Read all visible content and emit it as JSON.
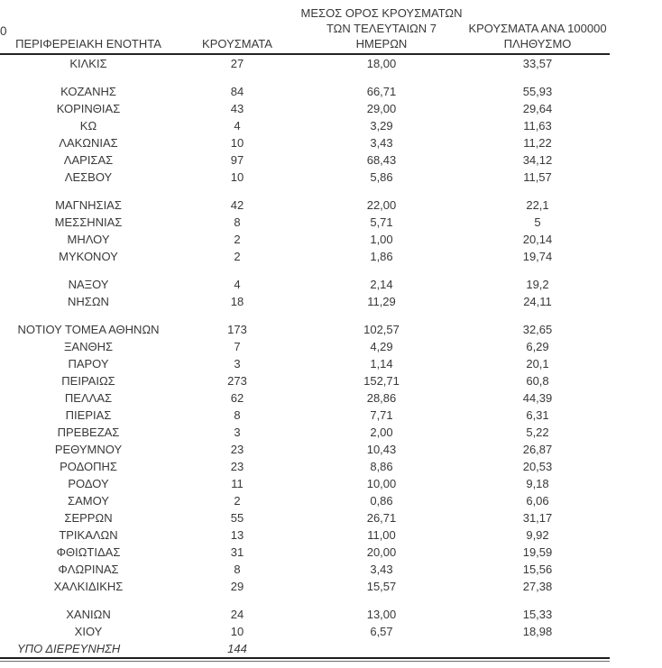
{
  "page": {
    "edge_fragment": "0"
  },
  "table": {
    "columns": [
      {
        "name": "region",
        "lines": [
          "ΠΕΡΙΦΕΡΕΙΑΚΗ ΕΝΟΤΗΤΑ"
        ]
      },
      {
        "name": "cases",
        "lines": [
          "ΚΡΟΥΣΜΑΤΑ"
        ]
      },
      {
        "name": "avg7",
        "lines": [
          "ΜΕΣΟΣ ΟΡΟΣ ΚΡΟΥΣΜΑΤΩΝ",
          "ΤΩΝ ΤΕΛΕΥΤΑΙΩΝ 7",
          "ΗΜΕΡΩΝ"
        ]
      },
      {
        "name": "per100k",
        "lines": [
          "ΚΡΟΥΣΜΑΤΑ ΑΝΑ 100000",
          "ΠΛΗΘΥΣΜΟ"
        ]
      }
    ],
    "rows": [
      {
        "region": "ΚΙΛΚΙΣ",
        "cases": "27",
        "avg7": "18,00",
        "per100k": "33,57"
      },
      {
        "spacer": true
      },
      {
        "region": "ΚΟΖΑΝΗΣ",
        "cases": "84",
        "avg7": "66,71",
        "per100k": "55,93"
      },
      {
        "region": "ΚΟΡΙΝΘΙΑΣ",
        "cases": "43",
        "avg7": "29,00",
        "per100k": "29,64"
      },
      {
        "region": "ΚΩ",
        "cases": "4",
        "avg7": "3,29",
        "per100k": "11,63"
      },
      {
        "region": "ΛΑΚΩΝΙΑΣ",
        "cases": "10",
        "avg7": "3,43",
        "per100k": "11,22"
      },
      {
        "region": "ΛΑΡΙΣΑΣ",
        "cases": "97",
        "avg7": "68,43",
        "per100k": "34,12"
      },
      {
        "region": "ΛΕΣΒΟΥ",
        "cases": "10",
        "avg7": "5,86",
        "per100k": "11,57"
      },
      {
        "spacer": true
      },
      {
        "region": "ΜΑΓΝΗΣΙΑΣ",
        "cases": "42",
        "avg7": "22,00",
        "per100k": "22,1"
      },
      {
        "region": "ΜΕΣΣΗΝΙΑΣ",
        "cases": "8",
        "avg7": "5,71",
        "per100k": "5"
      },
      {
        "region": "ΜΗΛΟΥ",
        "cases": "2",
        "avg7": "1,00",
        "per100k": "20,14"
      },
      {
        "region": "ΜΥΚΟΝΟΥ",
        "cases": "2",
        "avg7": "1,86",
        "per100k": "19,74"
      },
      {
        "spacer": true
      },
      {
        "region": "ΝΑΞΟΥ",
        "cases": "4",
        "avg7": "2,14",
        "per100k": "19,2"
      },
      {
        "region": "ΝΗΣΩΝ",
        "cases": "18",
        "avg7": "11,29",
        "per100k": "24,11"
      },
      {
        "spacer": true
      },
      {
        "region": "ΝΟΤΙΟΥ ΤΟΜΕΑ ΑΘΗΝΩΝ",
        "cases": "173",
        "avg7": "102,57",
        "per100k": "32,65"
      },
      {
        "region": "ΞΑΝΘΗΣ",
        "cases": "7",
        "avg7": "4,29",
        "per100k": "6,29"
      },
      {
        "region": "ΠΑΡΟΥ",
        "cases": "3",
        "avg7": "1,14",
        "per100k": "20,1"
      },
      {
        "region": "ΠΕΙΡΑΙΩΣ",
        "cases": "273",
        "avg7": "152,71",
        "per100k": "60,8"
      },
      {
        "region": "ΠΕΛΛΑΣ",
        "cases": "62",
        "avg7": "28,86",
        "per100k": "44,39"
      },
      {
        "region": "ΠΙΕΡΙΑΣ",
        "cases": "8",
        "avg7": "7,71",
        "per100k": "6,31"
      },
      {
        "region": "ΠΡΕΒΕΖΑΣ",
        "cases": "3",
        "avg7": "2,00",
        "per100k": "5,22"
      },
      {
        "region": "ΡΕΘΥΜΝΟΥ",
        "cases": "23",
        "avg7": "10,43",
        "per100k": "26,87"
      },
      {
        "region": "ΡΟΔΟΠΗΣ",
        "cases": "23",
        "avg7": "8,86",
        "per100k": "20,53"
      },
      {
        "region": "ΡΟΔΟΥ",
        "cases": "11",
        "avg7": "10,00",
        "per100k": "9,18"
      },
      {
        "region": "ΣΑΜΟΥ",
        "cases": "2",
        "avg7": "0,86",
        "per100k": "6,06"
      },
      {
        "region": "ΣΕΡΡΩΝ",
        "cases": "55",
        "avg7": "26,71",
        "per100k": "31,17"
      },
      {
        "region": "ΤΡΙΚΑΛΩΝ",
        "cases": "13",
        "avg7": "11,00",
        "per100k": "9,92"
      },
      {
        "region": "ΦΘΙΩΤΙΔΑΣ",
        "cases": "31",
        "avg7": "20,00",
        "per100k": "19,59"
      },
      {
        "region": "ΦΛΩΡΙΝΑΣ",
        "cases": "8",
        "avg7": "3,43",
        "per100k": "15,56"
      },
      {
        "region": "ΧΑΛΚΙΔΙΚΗΣ",
        "cases": "29",
        "avg7": "15,57",
        "per100k": "27,38"
      },
      {
        "spacer": true
      },
      {
        "region": "ΧΑΝΙΩΝ",
        "cases": "24",
        "avg7": "13,00",
        "per100k": "15,33"
      },
      {
        "region": "ΧΙΟΥ",
        "cases": "10",
        "avg7": "6,57",
        "per100k": "18,98"
      },
      {
        "region": "ΥΠΟ ΔΙΕΡΕΥΝΗΣΗ",
        "cases": "144",
        "avg7": "",
        "per100k": "",
        "italic": true
      }
    ]
  }
}
